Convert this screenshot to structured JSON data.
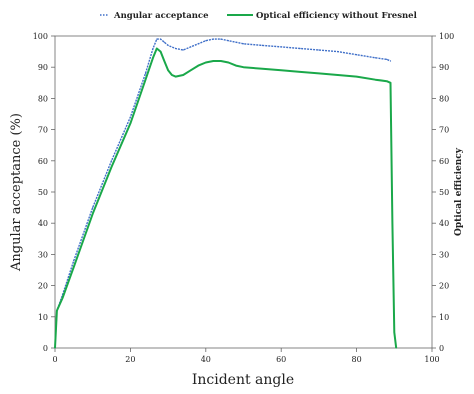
{
  "chart_data": {
    "type": "line",
    "title": "",
    "xlabel": "Incident angle",
    "ylabel_left": "Angular acceptance (%)",
    "ylabel_right": "Optical efficiency",
    "xlim": [
      0,
      100
    ],
    "ylim_left": [
      0,
      100
    ],
    "ylim_right": [
      0,
      100
    ],
    "x_ticks": [
      0,
      20,
      40,
      60,
      80,
      100
    ],
    "y_ticks_left": [
      0,
      10,
      20,
      30,
      40,
      50,
      60,
      70,
      80,
      90,
      100
    ],
    "y_ticks_right": [
      0,
      10,
      20,
      30,
      40,
      50,
      60,
      70,
      80,
      90,
      100
    ],
    "grid": false,
    "legend_position": "top",
    "series": [
      {
        "name": "Angular acceptance",
        "color": "#3f6fc8",
        "axis": "left",
        "x": [
          0,
          0.5,
          2,
          5,
          10,
          15,
          20,
          24,
          26,
          27,
          28,
          29,
          30,
          32,
          34,
          36,
          38,
          40,
          42,
          44,
          46,
          48,
          50,
          55,
          60,
          65,
          70,
          75,
          80,
          85,
          88,
          89
        ],
        "values": [
          0,
          12,
          17,
          28,
          45,
          60,
          74,
          88,
          96,
          99,
          99,
          98,
          97,
          96,
          95.5,
          96.5,
          97.5,
          98.5,
          99,
          99,
          98.5,
          98,
          97.5,
          97,
          96.5,
          96,
          95.5,
          95,
          94,
          93,
          92.5,
          92
        ]
      },
      {
        "name": "Optical efficiency without Fresnel",
        "color": "#1aa84a",
        "axis": "right",
        "x": [
          0,
          0.5,
          2,
          5,
          10,
          15,
          20,
          24,
          26,
          27,
          28,
          29,
          30,
          31,
          32,
          34,
          36,
          38,
          40,
          42,
          44,
          46,
          48,
          50,
          55,
          60,
          65,
          70,
          75,
          80,
          85,
          88,
          89,
          89.5,
          90,
          90.5
        ],
        "values": [
          0,
          12,
          16,
          26,
          43,
          58,
          72,
          86,
          93,
          96,
          95,
          92,
          89,
          87.5,
          87,
          87.5,
          89,
          90.5,
          91.5,
          92,
          92,
          91.5,
          90.5,
          90,
          89.5,
          89,
          88.5,
          88,
          87.5,
          87,
          86,
          85.5,
          85,
          40,
          5,
          0
        ]
      }
    ]
  }
}
